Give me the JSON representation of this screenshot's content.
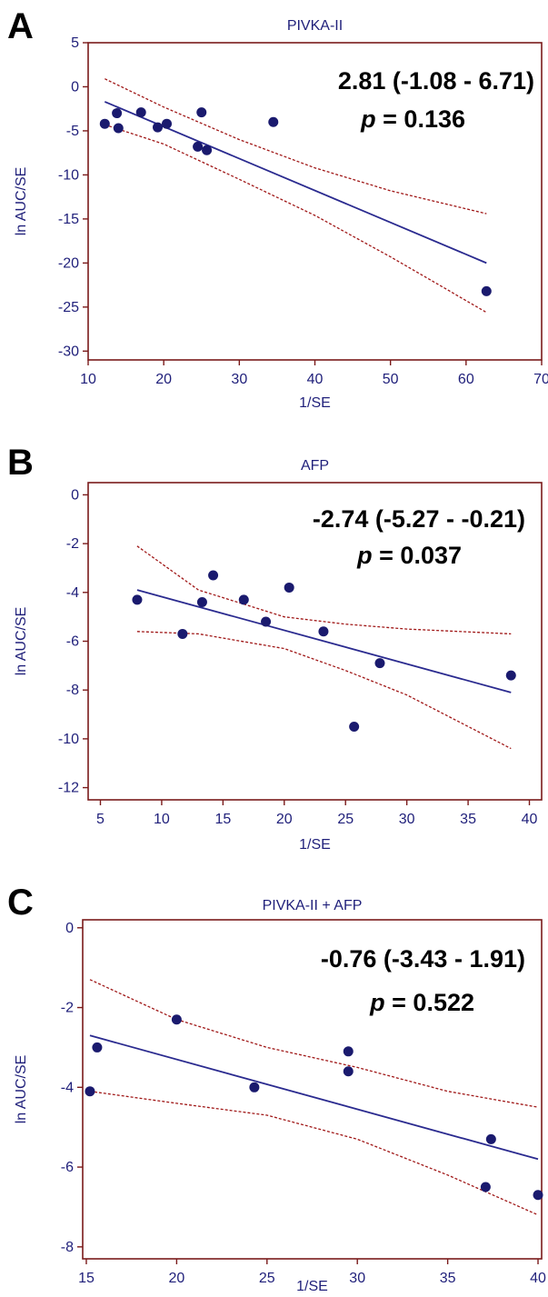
{
  "colors": {
    "frame": "#7a1a1a",
    "axis_text": "#1f1f7a",
    "points": "#1a1a6e",
    "regression": "#2a2a8f",
    "ci": "#a01818"
  },
  "chart_data": [
    {
      "type": "scatter",
      "panel": "A",
      "title": "PIVKA-II",
      "xlabel": "1/SE",
      "ylabel": "ln AUC/SE",
      "xlim": [
        10,
        70
      ],
      "ylim": [
        -31,
        5
      ],
      "xticks": [
        10,
        20,
        30,
        40,
        50,
        60,
        70
      ],
      "yticks": [
        5,
        0,
        -5,
        -10,
        -15,
        -20,
        -25,
        -30
      ],
      "points": [
        [
          12.2,
          -4.2
        ],
        [
          13.8,
          -3.0
        ],
        [
          14.0,
          -4.7
        ],
        [
          17.0,
          -2.9
        ],
        [
          19.2,
          -4.6
        ],
        [
          20.4,
          -4.2
        ],
        [
          24.5,
          -6.8
        ],
        [
          25.0,
          -2.9
        ],
        [
          25.7,
          -7.2
        ],
        [
          34.5,
          -4.0
        ],
        [
          62.7,
          -23.2
        ]
      ],
      "regression": [
        [
          12.2,
          -1.7
        ],
        [
          62.7,
          -20.0
        ]
      ],
      "ci_upper": [
        [
          12.2,
          0.9
        ],
        [
          20,
          -2.3
        ],
        [
          30,
          -6.0
        ],
        [
          40,
          -9.2
        ],
        [
          50,
          -11.8
        ],
        [
          62.7,
          -14.4
        ]
      ],
      "ci_lower": [
        [
          12.2,
          -4.3
        ],
        [
          20,
          -6.5
        ],
        [
          30,
          -10.5
        ],
        [
          40,
          -14.6
        ],
        [
          50,
          -19.3
        ],
        [
          62.7,
          -25.6
        ]
      ],
      "annotation_line1": "2.81 (-1.08 - 6.71)",
      "annotation_p_label": "p",
      "annotation_p_value": " = 0.136"
    },
    {
      "type": "scatter",
      "panel": "B",
      "title": "AFP",
      "xlabel": "1/SE",
      "ylabel": "ln AUC/SE",
      "xlim": [
        4,
        41
      ],
      "ylim": [
        -12.5,
        0.5
      ],
      "xticks": [
        5,
        10,
        15,
        20,
        25,
        30,
        35,
        40
      ],
      "yticks": [
        0,
        -2,
        -4,
        -6,
        -8,
        -10,
        -12
      ],
      "points": [
        [
          8.0,
          -4.3
        ],
        [
          11.7,
          -5.7
        ],
        [
          13.3,
          -4.4
        ],
        [
          14.2,
          -3.3
        ],
        [
          16.7,
          -4.3
        ],
        [
          18.5,
          -5.2
        ],
        [
          20.4,
          -3.8
        ],
        [
          23.2,
          -5.6
        ],
        [
          25.7,
          -9.5
        ],
        [
          27.8,
          -6.9
        ],
        [
          38.5,
          -7.4
        ]
      ],
      "regression": [
        [
          8.0,
          -3.9
        ],
        [
          38.5,
          -8.1
        ]
      ],
      "ci_upper": [
        [
          8.0,
          -2.1
        ],
        [
          13,
          -3.9
        ],
        [
          20,
          -5.0
        ],
        [
          25,
          -5.3
        ],
        [
          30,
          -5.5
        ],
        [
          38.5,
          -5.7
        ]
      ],
      "ci_lower": [
        [
          8.0,
          -5.6
        ],
        [
          13,
          -5.7
        ],
        [
          20,
          -6.3
        ],
        [
          25,
          -7.2
        ],
        [
          30,
          -8.2
        ],
        [
          38.5,
          -10.4
        ]
      ],
      "annotation_line1": "-2.74 (-5.27 - -0.21)",
      "annotation_p_label": "p",
      "annotation_p_value": " = 0.037"
    },
    {
      "type": "scatter",
      "panel": "C",
      "title": "PIVKA-II + AFP",
      "xlabel": "1/SE",
      "ylabel": "ln AUC/SE",
      "xlim": [
        14.8,
        40.2
      ],
      "ylim": [
        -8.3,
        0.2
      ],
      "xticks": [
        15,
        20,
        25,
        30,
        35,
        40
      ],
      "yticks": [
        0,
        -2,
        -4,
        -6,
        -8
      ],
      "points": [
        [
          15.2,
          -4.1
        ],
        [
          15.6,
          -3.0
        ],
        [
          20.0,
          -2.3
        ],
        [
          24.3,
          -4.0
        ],
        [
          29.5,
          -3.1
        ],
        [
          29.5,
          -3.6
        ],
        [
          37.1,
          -6.5
        ],
        [
          37.4,
          -5.3
        ],
        [
          40.0,
          -6.7
        ]
      ],
      "regression": [
        [
          15.2,
          -2.7
        ],
        [
          40.0,
          -5.8
        ]
      ],
      "ci_upper": [
        [
          15.2,
          -1.3
        ],
        [
          20,
          -2.3
        ],
        [
          25,
          -3.0
        ],
        [
          30,
          -3.5
        ],
        [
          35,
          -4.1
        ],
        [
          40,
          -4.5
        ]
      ],
      "ci_lower": [
        [
          15.2,
          -4.1
        ],
        [
          20,
          -4.4
        ],
        [
          25,
          -4.7
        ],
        [
          30,
          -5.3
        ],
        [
          35,
          -6.2
        ],
        [
          40,
          -7.2
        ]
      ],
      "annotation_line1": "-0.76 (-3.43 - 1.91)",
      "annotation_p_label": "p",
      "annotation_p_value": " = 0.522"
    }
  ]
}
